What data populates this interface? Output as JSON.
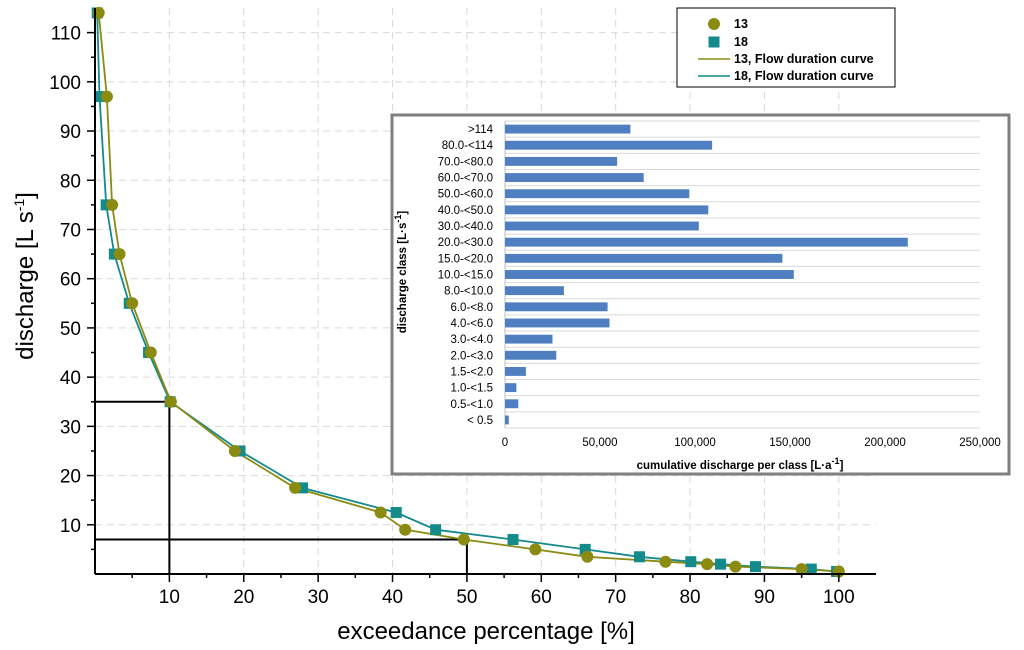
{
  "chart_data": [
    {
      "type": "scatter",
      "xlabel": "exceedance percentage [%]",
      "ylabel": "discharge [L s⁻¹]",
      "ylabel_main": "discharge [L s",
      "ylabel_sup": "-1",
      "ylabel_close": "]",
      "xlim": [
        0,
        105
      ],
      "ylim": [
        0,
        115
      ],
      "xticks": [
        10,
        20,
        30,
        40,
        50,
        60,
        70,
        80,
        90,
        100
      ],
      "yticks": [
        10,
        20,
        30,
        40,
        50,
        60,
        70,
        80,
        90,
        100,
        110
      ],
      "legend": {
        "position": "top-right",
        "entries": [
          "13",
          "18",
          "13, Flow duration curve",
          "18, Flow duration curve"
        ]
      },
      "colors": {
        "s13": "#8b8b12",
        "s18": "#148a8a"
      },
      "series": [
        {
          "name": "13",
          "marker": "circle",
          "x": [
            0.5,
            1.6,
            2.3,
            3.3,
            5.0,
            7.5,
            10.2,
            18.8,
            26.9,
            38.4,
            41.7,
            49.6,
            59.2,
            66.2,
            76.7,
            82.3,
            86.1,
            95.0,
            100.0
          ],
          "y": [
            114,
            97,
            75,
            65,
            55,
            45,
            35,
            25,
            17.5,
            12.5,
            9,
            7,
            5,
            3.5,
            2.5,
            2,
            1.5,
            1,
            0.5
          ]
        },
        {
          "name": "18",
          "marker": "square",
          "x": [
            0.3,
            0.6,
            1.5,
            2.6,
            4.6,
            7.2,
            10.1,
            19.5,
            27.9,
            40.5,
            45.8,
            56.2,
            65.9,
            73.2,
            80.1,
            84.1,
            88.8,
            96.3,
            99.7
          ],
          "y": [
            114,
            97,
            75,
            65,
            55,
            45,
            35,
            25,
            17.5,
            12.5,
            9,
            7,
            5,
            3.5,
            2.5,
            2,
            1.5,
            1,
            0.5
          ]
        },
        {
          "name": "13, Flow duration curve",
          "marker": "line",
          "x": [
            0.5,
            1.6,
            2.3,
            3.3,
            5.0,
            7.5,
            10.2,
            18.8,
            26.9,
            38.4,
            41.7,
            49.6,
            59.2,
            66.2,
            76.7,
            82.3,
            86.1,
            95.0,
            100.0
          ],
          "y": [
            114,
            97,
            75,
            65,
            55,
            45,
            35,
            25,
            17.5,
            12.5,
            9,
            7,
            5,
            3.5,
            2.5,
            2,
            1.5,
            1,
            0.5
          ]
        },
        {
          "name": "18, Flow duration curve",
          "marker": "line",
          "x": [
            0.3,
            0.6,
            1.5,
            2.6,
            4.6,
            7.2,
            10.1,
            19.5,
            27.9,
            40.5,
            45.8,
            56.2,
            65.9,
            73.2,
            80.1,
            84.1,
            88.8,
            96.3,
            99.7
          ],
          "y": [
            114,
            97,
            75,
            65,
            55,
            45,
            35,
            25,
            17.5,
            12.5,
            9,
            7,
            5,
            3.5,
            2.5,
            2,
            1.5,
            1,
            0.5
          ]
        }
      ],
      "reference_lines": [
        {
          "x": 10,
          "y": 35
        },
        {
          "x": 50,
          "y": 7
        }
      ]
    },
    {
      "type": "bar",
      "orientation": "horizontal",
      "xlabel": "cumulative discharge per class [L·a⁻¹]",
      "xlabel_main": "cumulative discharge per class [L·a",
      "xlabel_sup": "-1",
      "xlabel_close": "]",
      "ylabel": "discharge class [L·s⁻¹]",
      "ylabel_main": "discharge class [L·s",
      "ylabel_sup": "-1",
      "ylabel_close": "]",
      "xlim": [
        0,
        250000
      ],
      "xticks": [
        0,
        50000,
        100000,
        150000,
        200000,
        250000
      ],
      "xtick_labels": [
        "0",
        "50,000",
        "100,000",
        "150,000",
        "200,000",
        "250,000"
      ],
      "bar_color": "#4f7fc0",
      "categories": [
        ">114",
        "80.0-<114",
        "70.0-<80.0",
        "60.0-<70.0",
        "50.0-<60.0",
        "40.0-<50.0",
        "30.0-<40.0",
        "20.0-<30.0",
        "15.0-<20.0",
        "10.0-<15.0",
        "8.0-<10.0",
        "6.0-<8.0",
        "4.0-<6.0",
        "3.0-<4.0",
        "2.0-<3.0",
        "1.5-<2.0",
        "1.0-<1.5",
        "0.5-<1.0",
        "< 0.5"
      ],
      "values": [
        66000,
        109000,
        59000,
        73000,
        97000,
        107000,
        102000,
        212000,
        146000,
        152000,
        31000,
        54000,
        55000,
        25000,
        27000,
        11000,
        6000,
        7000,
        2000
      ]
    }
  ]
}
